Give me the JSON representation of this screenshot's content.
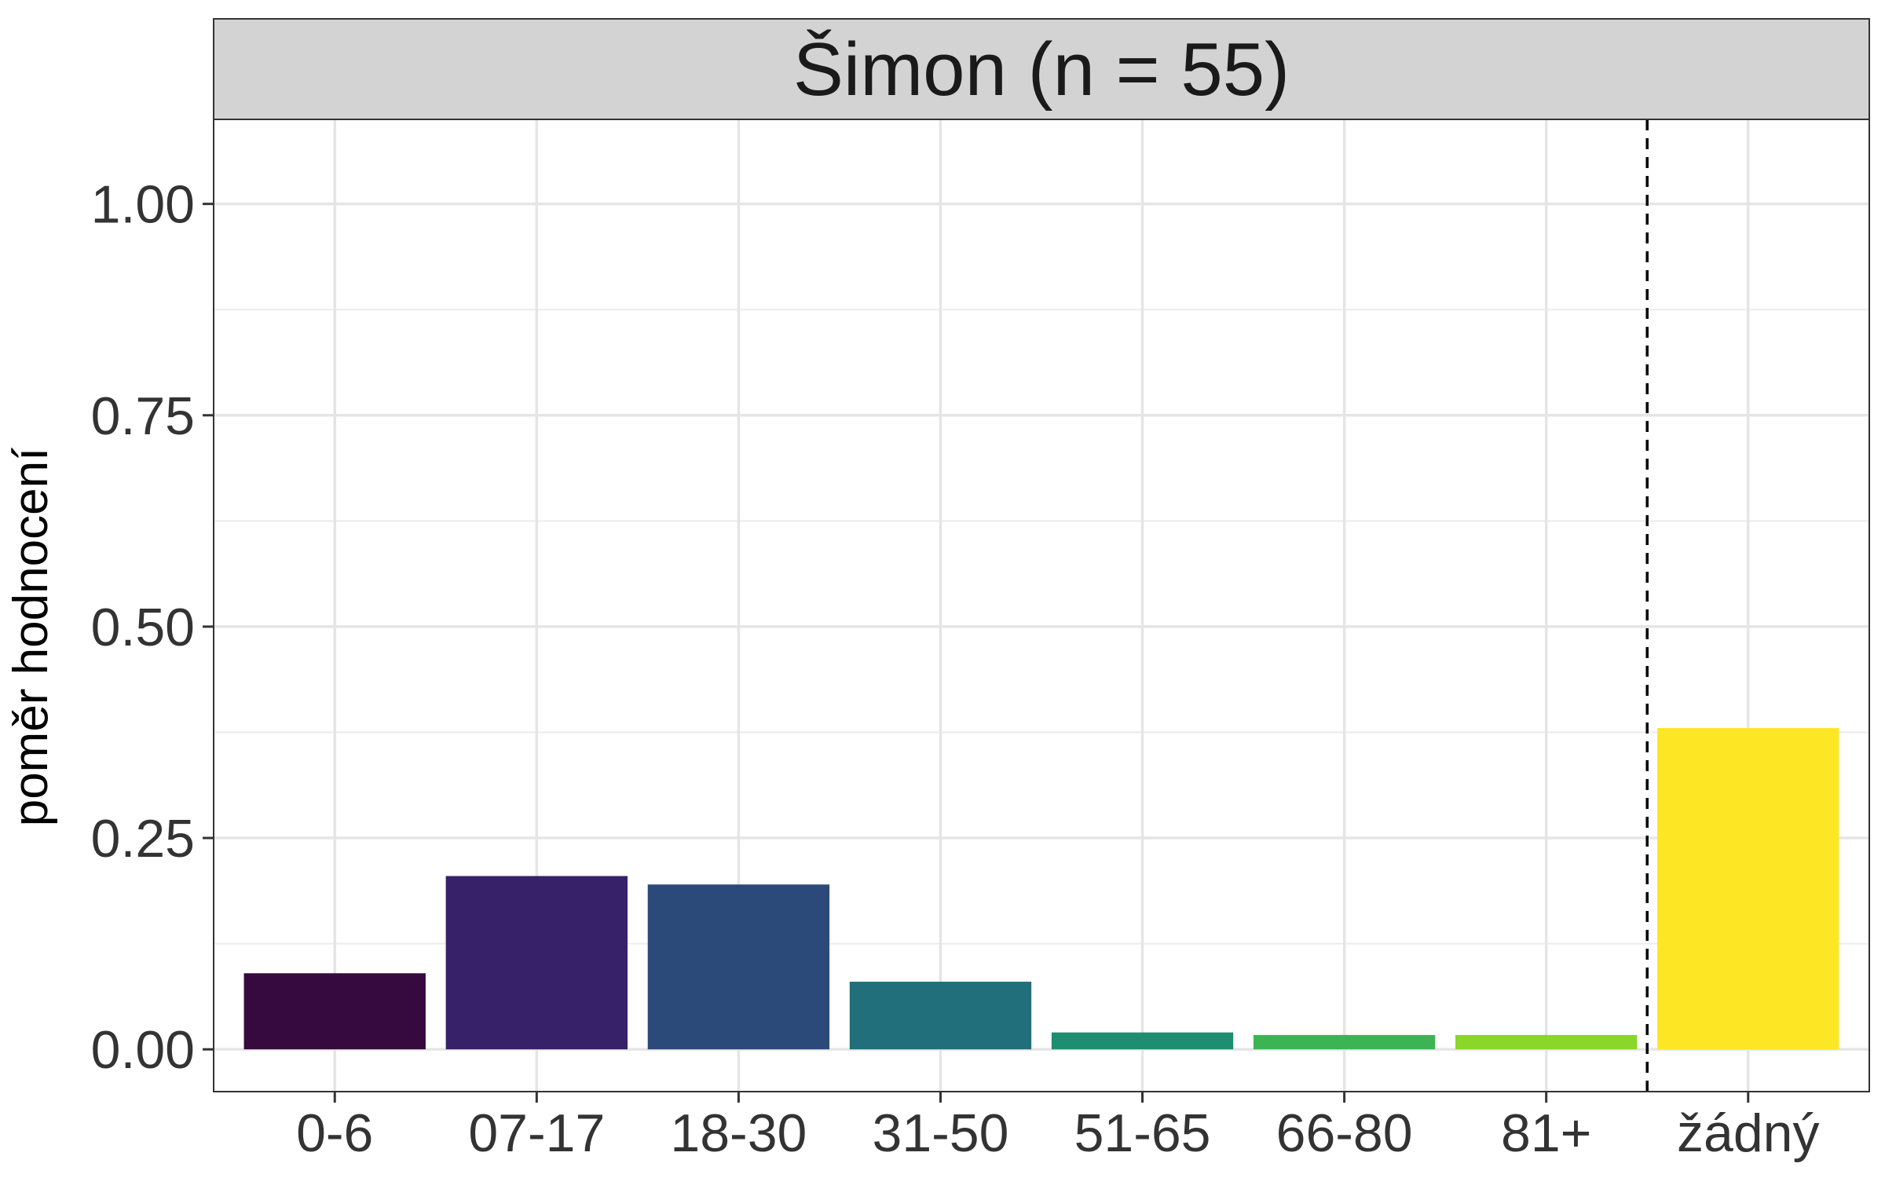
{
  "chart_data": {
    "type": "bar",
    "panel_title": "Šimon (n = 55)",
    "xlabel": "",
    "ylabel": "poměr hodnocení",
    "categories": [
      "0-6",
      "07-17",
      "18-30",
      "31-50",
      "51-65",
      "66-80",
      "81+",
      "žádný"
    ],
    "values": [
      0.09,
      0.205,
      0.195,
      0.08,
      0.02,
      0.017,
      0.017,
      0.38
    ],
    "colors": [
      "#360a3e",
      "#372168",
      "#2c4a79",
      "#216f7a",
      "#1e8e70",
      "#3cb454",
      "#8ad62a",
      "#fde725"
    ],
    "ylim": [
      -0.05,
      1.1
    ],
    "yticks": [
      0.0,
      0.25,
      0.5,
      0.75,
      1.0
    ],
    "ytick_labels": [
      "0.00",
      "0.25",
      "0.50",
      "0.75",
      "1.00"
    ],
    "reference_line": {
      "style": "dashed",
      "between_categories": [
        "81+",
        "žádný"
      ]
    },
    "grid": true,
    "legend": "none"
  }
}
